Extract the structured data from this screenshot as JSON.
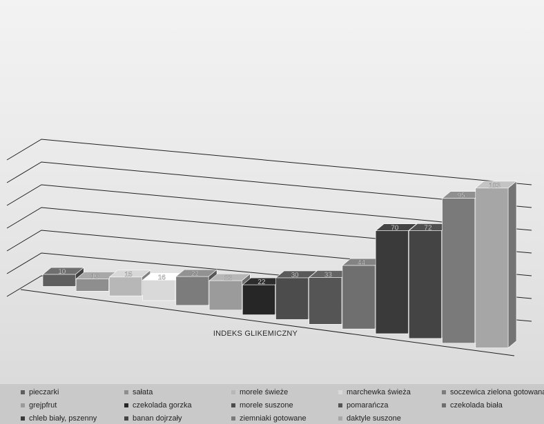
{
  "chart_data": {
    "type": "bar",
    "title": "",
    "xlabel": "INDEKS GLIKEMICZNY",
    "ylabel": "",
    "grid": true,
    "three_d": true,
    "legend_position": "bottom",
    "ylim": [
      0,
      120
    ],
    "series": [
      {
        "name": "pieczarki",
        "value": 10,
        "color": "#5e5e5e"
      },
      {
        "name": "sałata",
        "value": 10,
        "color": "#8e8e8e"
      },
      {
        "name": "morele świeże",
        "value": 15,
        "color": "#b7b7b7"
      },
      {
        "name": "marchewka świeża",
        "value": 16,
        "color": "#d9d9d9"
      },
      {
        "name": "soczewica zielona gotowana",
        "value": 22,
        "color": "#7c7c7c"
      },
      {
        "name": "grejpfrut",
        "value": 22,
        "color": "#9b9b9b"
      },
      {
        "name": "czekolada gorzka",
        "value": 22,
        "color": "#262626"
      },
      {
        "name": "morele suszone",
        "value": 30,
        "color": "#4c4c4c"
      },
      {
        "name": "pomarańcza",
        "value": 33,
        "color": "#555555"
      },
      {
        "name": "czekolada biała",
        "value": 44,
        "color": "#6f6f6f"
      },
      {
        "name": "chleb biały, pszenny",
        "value": 70,
        "color": "#3a3a3a"
      },
      {
        "name": "banan dojrzały",
        "value": 72,
        "color": "#444444"
      },
      {
        "name": "ziemniaki gotowane",
        "value": 95,
        "color": "#7a7a7a"
      },
      {
        "name": "daktyle suszone",
        "value": 103,
        "color": "#a6a6a6"
      }
    ]
  }
}
